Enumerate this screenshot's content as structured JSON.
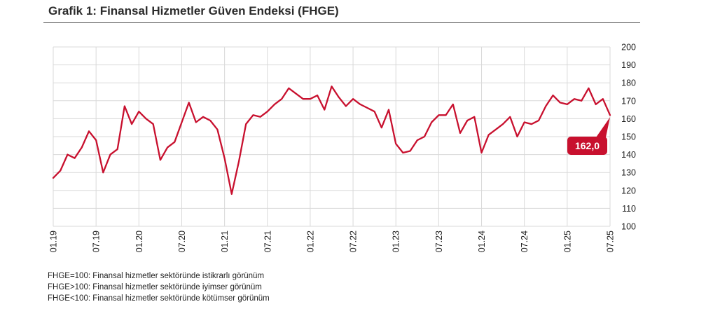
{
  "title": "Grafik 1: Finansal Hizmetler Güven Endeksi (FHGE)",
  "notes": [
    "FHGE=100: Finansal hizmetler sektöründe istikrarlı görünüm",
    "FHGE>100: Finansal hizmetler sektöründe iyimser görünüm",
    "FHGE<100: Finansal hizmetler sektöründe kötümser görünüm"
  ],
  "colors": {
    "line": "#c8102e",
    "grid": "#d9d9d9",
    "label_bg": "#c8102e"
  },
  "chart_data": {
    "type": "line",
    "title": "",
    "xlabel": "",
    "ylabel": "",
    "ylim": [
      100,
      200
    ],
    "yticks": [
      100,
      110,
      120,
      130,
      140,
      150,
      160,
      170,
      180,
      190,
      200
    ],
    "xtick_labels": [
      "01.19",
      "07.19",
      "01.20",
      "07.20",
      "01.21",
      "07.21",
      "01.22",
      "07.22",
      "01.23",
      "07.23",
      "01.24",
      "07.24",
      "01.25",
      "07.25"
    ],
    "grid": true,
    "last_value_label": "162,0",
    "series": [
      {
        "values": [
          127,
          131,
          140,
          138,
          144,
          153,
          148,
          130,
          140,
          143,
          167,
          157,
          164,
          160,
          157,
          137,
          144,
          147,
          158,
          169,
          158,
          161,
          159,
          154,
          138,
          118,
          136,
          157,
          162,
          161,
          164,
          168,
          171,
          177,
          174,
          171,
          171,
          173,
          165,
          178,
          172,
          167,
          171,
          168,
          166,
          164,
          155,
          165,
          146,
          141,
          142,
          148,
          150,
          158,
          162,
          162,
          168,
          152,
          159,
          161,
          141,
          151,
          154,
          157,
          161,
          150,
          158,
          157,
          159,
          167,
          173,
          169,
          168,
          171,
          170,
          177,
          168,
          171,
          162
        ]
      }
    ]
  }
}
